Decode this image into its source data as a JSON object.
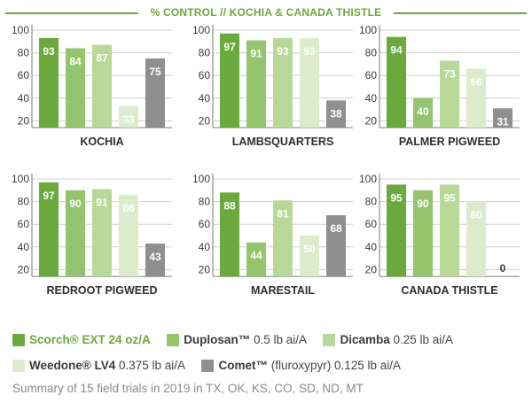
{
  "title": "% CONTROL  //  KOCHIA & CANADA THISTLE",
  "colors": {
    "series": [
      "#6aaa3c",
      "#95c46e",
      "#b8d898",
      "#dcebcb",
      "#8f8f92"
    ],
    "accent": "#6aaa3c",
    "axis": "#7a7a7a"
  },
  "chart_data": [
    {
      "type": "bar",
      "title": "KOCHIA",
      "categories": [
        "Scorch® EXT 24 oz/A",
        "Duplosan™ 0.5 lb ai/A",
        "Dicamba 0.25 lb ai/A",
        "Weedone® LV4 0.375 lb ai/A",
        "Comet™ (fluroxypyr) 0.125 lb ai/A"
      ],
      "values": [
        93,
        84,
        87,
        33,
        75
      ],
      "yticks": [
        20,
        40,
        60,
        80,
        100
      ],
      "ylim": [
        0,
        100
      ]
    },
    {
      "type": "bar",
      "title": "LAMBSQUARTERS",
      "categories": [
        "Scorch® EXT 24 oz/A",
        "Duplosan™ 0.5 lb ai/A",
        "Dicamba 0.25 lb ai/A",
        "Weedone® LV4 0.375 lb ai/A",
        "Comet™ (fluroxypyr) 0.125 lb ai/A"
      ],
      "values": [
        97,
        91,
        93,
        93,
        38
      ],
      "yticks": [
        20,
        40,
        60,
        80,
        100
      ],
      "ylim": [
        0,
        100
      ]
    },
    {
      "type": "bar",
      "title": "PALMER PIGWEED",
      "categories": [
        "Scorch® EXT 24 oz/A",
        "Duplosan™ 0.5 lb ai/A",
        "Dicamba 0.25 lb ai/A",
        "Weedone® LV4 0.375 lb ai/A",
        "Comet™ (fluroxypyr) 0.125 lb ai/A"
      ],
      "values": [
        94,
        40,
        73,
        66,
        31
      ],
      "yticks": [
        20,
        40,
        60,
        80,
        100
      ],
      "ylim": [
        0,
        100
      ]
    },
    {
      "type": "bar",
      "title": "REDROOT PIGWEED",
      "categories": [
        "Scorch® EXT 24 oz/A",
        "Duplosan™ 0.5 lb ai/A",
        "Dicamba 0.25 lb ai/A",
        "Weedone® LV4 0.375 lb ai/A",
        "Comet™ (fluroxypyr) 0.125 lb ai/A"
      ],
      "values": [
        97,
        90,
        91,
        86,
        43
      ],
      "yticks": [
        20,
        40,
        60,
        80,
        100
      ],
      "ylim": [
        0,
        100
      ]
    },
    {
      "type": "bar",
      "title": "MARESTAIL",
      "categories": [
        "Scorch® EXT 24 oz/A",
        "Duplosan™ 0.5 lb ai/A",
        "Dicamba 0.25 lb ai/A",
        "Weedone® LV4 0.375 lb ai/A",
        "Comet™ (fluroxypyr) 0.125 lb ai/A"
      ],
      "values": [
        88,
        44,
        81,
        50,
        68
      ],
      "yticks": [
        20,
        40,
        60,
        80,
        100
      ],
      "ylim": [
        0,
        100
      ]
    },
    {
      "type": "bar",
      "title": "CANADA THISTLE",
      "categories": [
        "Scorch® EXT 24 oz/A",
        "Duplosan™ 0.5 lb ai/A",
        "Dicamba 0.25 lb ai/A",
        "Weedone® LV4 0.375 lb ai/A",
        "Comet™ (fluroxypyr) 0.125 lb ai/A"
      ],
      "values": [
        95,
        90,
        95,
        80,
        0
      ],
      "yticks": [
        20,
        40,
        60,
        80,
        100
      ],
      "ylim": [
        0,
        100
      ]
    }
  ],
  "legend": [
    {
      "strong": "Scorch® EXT 24 oz/A",
      "rest": ""
    },
    {
      "strong": "Duplosan™",
      "rest": " 0.5 lb ai/A"
    },
    {
      "strong": "Dicamba",
      "rest": " 0.25 lb ai/A"
    },
    {
      "strong": "Weedone® LV4",
      "rest": " 0.375 lb ai/A"
    },
    {
      "strong": "Comet™",
      "rest": " (fluroxypyr) 0.125 lb ai/A"
    }
  ],
  "footnote": "Summary of 15 field trials in 2019 in TX, OK, KS, CO, SD, ND, MT"
}
